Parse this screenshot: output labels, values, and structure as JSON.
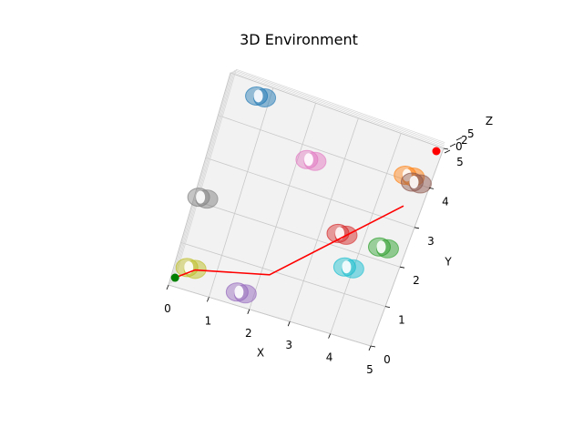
{
  "figure": {
    "title": "3D Environment"
  },
  "chart_data": {
    "type": "scatter3d",
    "title": "3D Environment",
    "xlabel": "X",
    "ylabel": "Y",
    "zlabel": "Z",
    "xlim": [
      0,
      5
    ],
    "ylim": [
      0,
      5
    ],
    "zlim": [
      0,
      5
    ],
    "grid": true,
    "x_ticks": [
      "0",
      "1",
      "2",
      "3",
      "4",
      "5"
    ],
    "y_ticks": [
      "0",
      "1",
      "2",
      "3",
      "4",
      "5"
    ],
    "z_ticks": [
      "0",
      "2",
      "5"
    ],
    "path": {
      "color": "#ff0000",
      "points": [
        [
          0.1,
          0.2
        ],
        [
          0.5,
          0.5
        ],
        [
          2.2,
          0.9
        ],
        [
          4.6,
          3.4
        ]
      ]
    },
    "start_marker": {
      "x": 0.1,
      "y": 0.2,
      "color": "#008000"
    },
    "goal_marker": {
      "x": 5.0,
      "y": 5.0,
      "color": "#ff0000"
    },
    "obstacles": [
      {
        "x": 0.3,
        "y": 0.5,
        "color": "#bcbd22"
      },
      {
        "x": 1.6,
        "y": 0.3,
        "color": "#9467bd"
      },
      {
        "x": 0.1,
        "y": 2.1,
        "color": "#7f7f7f"
      },
      {
        "x": 3.4,
        "y": 2.3,
        "color": "#d62728"
      },
      {
        "x": 3.8,
        "y": 1.6,
        "color": "#17becf"
      },
      {
        "x": 4.4,
        "y": 2.3,
        "color": "#2ca02c"
      },
      {
        "x": 4.4,
        "y": 4.1,
        "color": "#ff7f0e"
      },
      {
        "x": 4.6,
        "y": 4.0,
        "color": "#8c564b"
      },
      {
        "x": 2.2,
        "y": 3.7,
        "color": "#e377c2"
      },
      {
        "x": 0.7,
        "y": 4.7,
        "color": "#1f77b4"
      }
    ]
  }
}
